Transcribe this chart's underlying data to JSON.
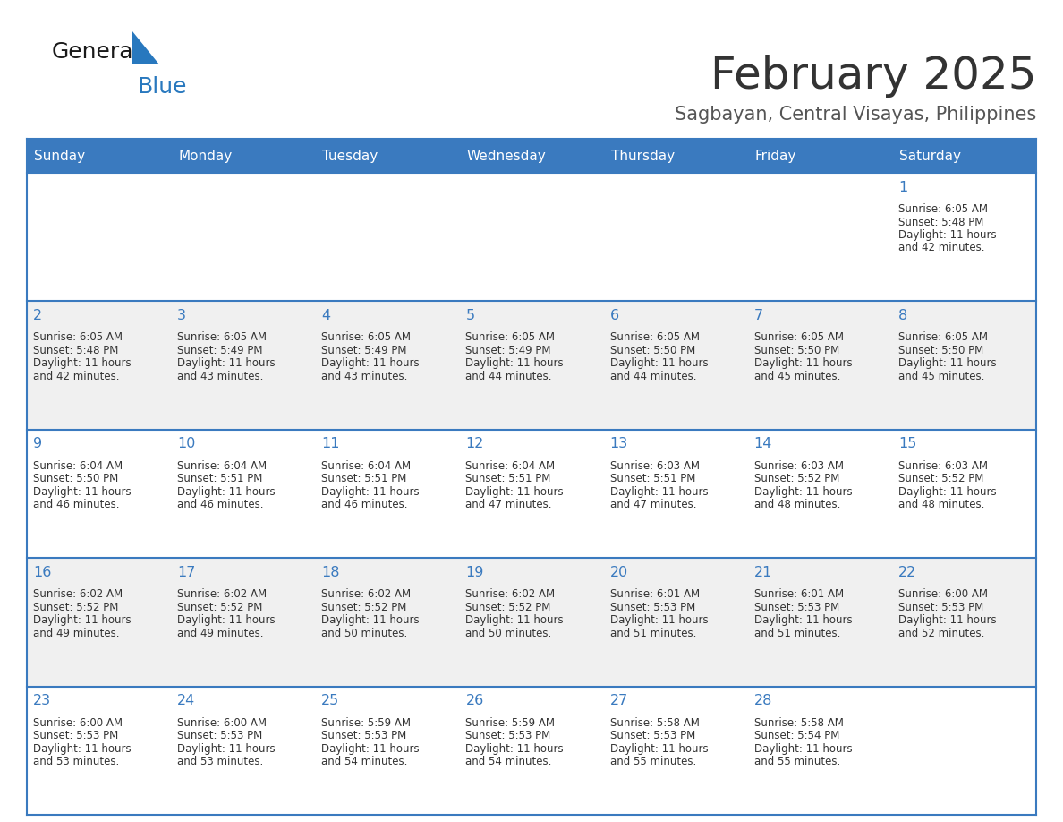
{
  "title": "February 2025",
  "subtitle": "Sagbayan, Central Visayas, Philippines",
  "days_of_week": [
    "Sunday",
    "Monday",
    "Tuesday",
    "Wednesday",
    "Thursday",
    "Friday",
    "Saturday"
  ],
  "header_bg": "#3a7abf",
  "header_text_color": "#ffffff",
  "row_bg": [
    "#ffffff",
    "#f0f0f0",
    "#ffffff",
    "#f0f0f0",
    "#ffffff"
  ],
  "separator_color": "#3a7abf",
  "day_number_color": "#3a7abf",
  "cell_text_color": "#333333",
  "title_color": "#333333",
  "subtitle_color": "#555555",
  "logo_general_color": "#1a1a1a",
  "logo_blue_color": "#2878be",
  "calendar_data": [
    {
      "day": 1,
      "week": 0,
      "col": 6,
      "sunrise": "6:05 AM",
      "sunset": "5:48 PM",
      "daylight_hours": 11,
      "daylight_minutes": 42
    },
    {
      "day": 2,
      "week": 1,
      "col": 0,
      "sunrise": "6:05 AM",
      "sunset": "5:48 PM",
      "daylight_hours": 11,
      "daylight_minutes": 42
    },
    {
      "day": 3,
      "week": 1,
      "col": 1,
      "sunrise": "6:05 AM",
      "sunset": "5:49 PM",
      "daylight_hours": 11,
      "daylight_minutes": 43
    },
    {
      "day": 4,
      "week": 1,
      "col": 2,
      "sunrise": "6:05 AM",
      "sunset": "5:49 PM",
      "daylight_hours": 11,
      "daylight_minutes": 43
    },
    {
      "day": 5,
      "week": 1,
      "col": 3,
      "sunrise": "6:05 AM",
      "sunset": "5:49 PM",
      "daylight_hours": 11,
      "daylight_minutes": 44
    },
    {
      "day": 6,
      "week": 1,
      "col": 4,
      "sunrise": "6:05 AM",
      "sunset": "5:50 PM",
      "daylight_hours": 11,
      "daylight_minutes": 44
    },
    {
      "day": 7,
      "week": 1,
      "col": 5,
      "sunrise": "6:05 AM",
      "sunset": "5:50 PM",
      "daylight_hours": 11,
      "daylight_minutes": 45
    },
    {
      "day": 8,
      "week": 1,
      "col": 6,
      "sunrise": "6:05 AM",
      "sunset": "5:50 PM",
      "daylight_hours": 11,
      "daylight_minutes": 45
    },
    {
      "day": 9,
      "week": 2,
      "col": 0,
      "sunrise": "6:04 AM",
      "sunset": "5:50 PM",
      "daylight_hours": 11,
      "daylight_minutes": 46
    },
    {
      "day": 10,
      "week": 2,
      "col": 1,
      "sunrise": "6:04 AM",
      "sunset": "5:51 PM",
      "daylight_hours": 11,
      "daylight_minutes": 46
    },
    {
      "day": 11,
      "week": 2,
      "col": 2,
      "sunrise": "6:04 AM",
      "sunset": "5:51 PM",
      "daylight_hours": 11,
      "daylight_minutes": 46
    },
    {
      "day": 12,
      "week": 2,
      "col": 3,
      "sunrise": "6:04 AM",
      "sunset": "5:51 PM",
      "daylight_hours": 11,
      "daylight_minutes": 47
    },
    {
      "day": 13,
      "week": 2,
      "col": 4,
      "sunrise": "6:03 AM",
      "sunset": "5:51 PM",
      "daylight_hours": 11,
      "daylight_minutes": 47
    },
    {
      "day": 14,
      "week": 2,
      "col": 5,
      "sunrise": "6:03 AM",
      "sunset": "5:52 PM",
      "daylight_hours": 11,
      "daylight_minutes": 48
    },
    {
      "day": 15,
      "week": 2,
      "col": 6,
      "sunrise": "6:03 AM",
      "sunset": "5:52 PM",
      "daylight_hours": 11,
      "daylight_minutes": 48
    },
    {
      "day": 16,
      "week": 3,
      "col": 0,
      "sunrise": "6:02 AM",
      "sunset": "5:52 PM",
      "daylight_hours": 11,
      "daylight_minutes": 49
    },
    {
      "day": 17,
      "week": 3,
      "col": 1,
      "sunrise": "6:02 AM",
      "sunset": "5:52 PM",
      "daylight_hours": 11,
      "daylight_minutes": 49
    },
    {
      "day": 18,
      "week": 3,
      "col": 2,
      "sunrise": "6:02 AM",
      "sunset": "5:52 PM",
      "daylight_hours": 11,
      "daylight_minutes": 50
    },
    {
      "day": 19,
      "week": 3,
      "col": 3,
      "sunrise": "6:02 AM",
      "sunset": "5:52 PM",
      "daylight_hours": 11,
      "daylight_minutes": 50
    },
    {
      "day": 20,
      "week": 3,
      "col": 4,
      "sunrise": "6:01 AM",
      "sunset": "5:53 PM",
      "daylight_hours": 11,
      "daylight_minutes": 51
    },
    {
      "day": 21,
      "week": 3,
      "col": 5,
      "sunrise": "6:01 AM",
      "sunset": "5:53 PM",
      "daylight_hours": 11,
      "daylight_minutes": 51
    },
    {
      "day": 22,
      "week": 3,
      "col": 6,
      "sunrise": "6:00 AM",
      "sunset": "5:53 PM",
      "daylight_hours": 11,
      "daylight_minutes": 52
    },
    {
      "day": 23,
      "week": 4,
      "col": 0,
      "sunrise": "6:00 AM",
      "sunset": "5:53 PM",
      "daylight_hours": 11,
      "daylight_minutes": 53
    },
    {
      "day": 24,
      "week": 4,
      "col": 1,
      "sunrise": "6:00 AM",
      "sunset": "5:53 PM",
      "daylight_hours": 11,
      "daylight_minutes": 53
    },
    {
      "day": 25,
      "week": 4,
      "col": 2,
      "sunrise": "5:59 AM",
      "sunset": "5:53 PM",
      "daylight_hours": 11,
      "daylight_minutes": 54
    },
    {
      "day": 26,
      "week": 4,
      "col": 3,
      "sunrise": "5:59 AM",
      "sunset": "5:53 PM",
      "daylight_hours": 11,
      "daylight_minutes": 54
    },
    {
      "day": 27,
      "week": 4,
      "col": 4,
      "sunrise": "5:58 AM",
      "sunset": "5:53 PM",
      "daylight_hours": 11,
      "daylight_minutes": 55
    },
    {
      "day": 28,
      "week": 4,
      "col": 5,
      "sunrise": "5:58 AM",
      "sunset": "5:54 PM",
      "daylight_hours": 11,
      "daylight_minutes": 55
    }
  ]
}
